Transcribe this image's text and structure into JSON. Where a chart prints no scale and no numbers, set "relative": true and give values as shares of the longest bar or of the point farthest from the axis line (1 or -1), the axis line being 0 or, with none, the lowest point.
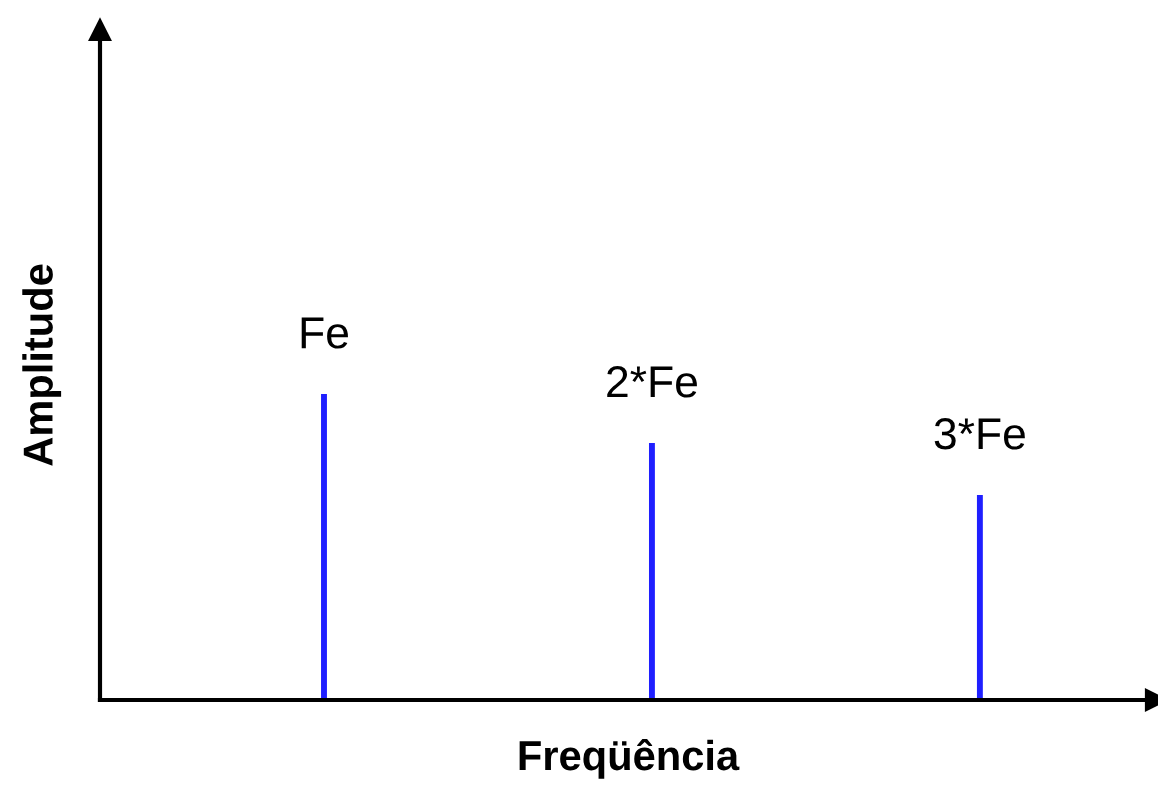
{
  "chart_data": {
    "type": "bar",
    "relative": true,
    "xlabel": "Freqüência",
    "ylabel": "Amplitude",
    "categories": [
      "Fe",
      "2*Fe",
      "3*Fe"
    ],
    "values": [
      1,
      0.84,
      0.67
    ],
    "color": "#1f1fff"
  }
}
